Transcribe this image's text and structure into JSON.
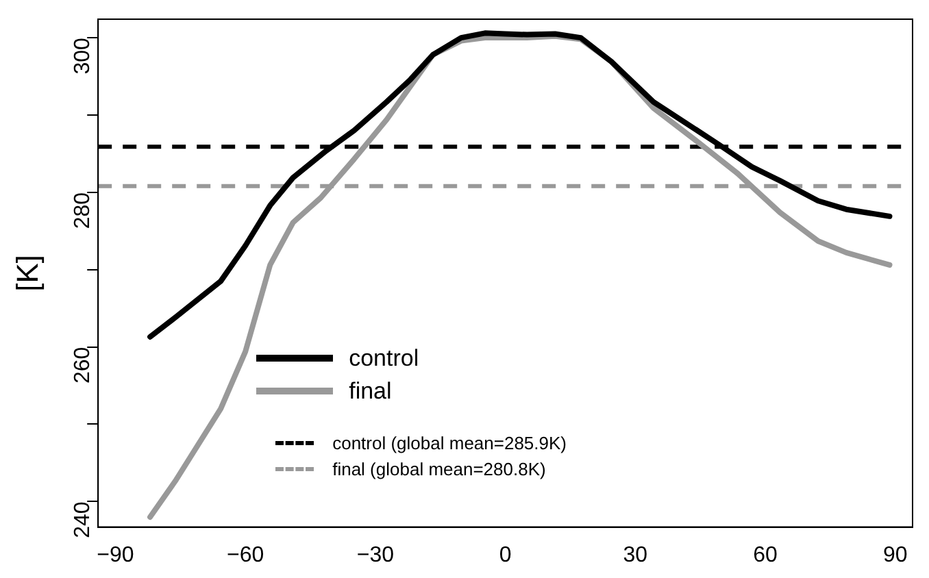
{
  "chart_data": {
    "type": "line",
    "ylabel": "[K]",
    "xlim": [
      -94,
      94
    ],
    "ylim": [
      236.7,
      302.4
    ],
    "xticks": [
      -90,
      -60,
      -30,
      0,
      30,
      60,
      90
    ],
    "yticks": [
      240,
      {
        "value": 250,
        "label": null
      },
      260,
      {
        "value": 270,
        "label": null
      },
      280,
      {
        "value": 290,
        "label": null
      },
      300
    ],
    "grid": false,
    "legend": "bottom",
    "marker": "none",
    "line_style": "solid",
    "series": [
      {
        "name": "control",
        "color": "#000000",
        "x": [
          -82,
          -76,
          -65.7,
          -60,
          -54.3,
          -49,
          -41.3,
          -34.9,
          -27.4,
          -21.9,
          -16.7,
          -10.2,
          -4.7,
          0,
          5,
          11.5,
          17.4,
          24.5,
          34.2,
          49.5,
          56.9,
          63.4,
          72.2,
          78.7,
          88.7
        ],
        "values": [
          261.3,
          263.9,
          268.5,
          273.1,
          278.3,
          281.9,
          285.4,
          288,
          291.7,
          294.6,
          297.8,
          300,
          300.6,
          300.5,
          300.4,
          300.5,
          300,
          296.9,
          291.7,
          286.1,
          283.3,
          281.5,
          278.9,
          277.8,
          276.9
        ]
      },
      {
        "name": "final",
        "color": "#999999",
        "x": [
          -82,
          -76,
          -65.7,
          -60,
          -54.3,
          -49,
          -42.6,
          -34.9,
          -27.4,
          -16.7,
          -10.2,
          -4.7,
          0,
          5,
          11.5,
          17.4,
          24.5,
          34.2,
          44,
          53.7,
          63.4,
          72.2,
          78.7,
          88.7
        ],
        "values": [
          238,
          242.8,
          252,
          259.4,
          270.6,
          276.1,
          279.3,
          284.3,
          289.4,
          297.8,
          299.6,
          300,
          300,
          300,
          300.2,
          299.8,
          296.9,
          290.9,
          286.7,
          282.4,
          277.4,
          273.7,
          272.2,
          270.6
        ]
      }
    ],
    "ref_lines": [
      {
        "axis": "y",
        "value": 285.9,
        "label": "control (global mean=285.9K)",
        "color": "#000000",
        "line_style": "dashed"
      },
      {
        "axis": "y",
        "value": 280.8,
        "label": "final (global mean=280.8K)",
        "color": "#999999",
        "line_style": "dashed"
      }
    ]
  }
}
